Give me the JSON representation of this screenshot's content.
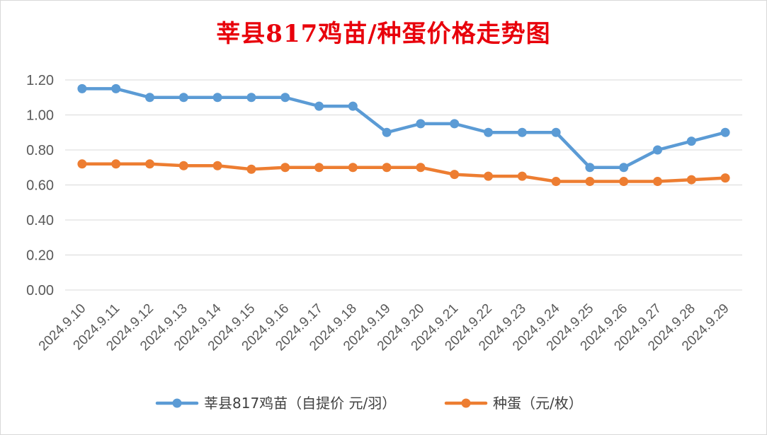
{
  "chart_data": {
    "type": "line",
    "title": "莘县817鸡苗/种蛋价格走势图",
    "xlabel": "",
    "ylabel": "",
    "ylim": [
      0,
      1.2
    ],
    "yticks": [
      "0.00",
      "0.20",
      "0.40",
      "0.60",
      "0.80",
      "1.00",
      "1.20"
    ],
    "grid": true,
    "legend_position": "bottom",
    "categories": [
      "2024.9.10",
      "2024.9.11",
      "2024.9.12",
      "2024.9.13",
      "2024.9.14",
      "2024.9.15",
      "2024.9.16",
      "2024.9.17",
      "2024.9.18",
      "2024.9.19",
      "2024.9.20",
      "2024.9.21",
      "2024.9.22",
      "2024.9.23",
      "2024.9.24",
      "2024.9.25",
      "2024.9.26",
      "2024.9.27",
      "2024.9.28",
      "2024.9.29"
    ],
    "series": [
      {
        "name": "莘县817鸡苗（自提价 元/羽）",
        "color": "#5b9bd5",
        "values": [
          1.15,
          1.15,
          1.1,
          1.1,
          1.1,
          1.1,
          1.1,
          1.05,
          1.05,
          0.9,
          0.95,
          0.95,
          0.9,
          0.9,
          0.9,
          0.7,
          0.7,
          0.8,
          0.85,
          0.9
        ]
      },
      {
        "name": "种蛋（元/枚）",
        "color": "#ed7d31",
        "values": [
          0.72,
          0.72,
          0.72,
          0.71,
          0.71,
          0.69,
          0.7,
          0.7,
          0.7,
          0.7,
          0.7,
          0.66,
          0.65,
          0.65,
          0.62,
          0.62,
          0.62,
          0.62,
          0.63,
          0.64
        ]
      }
    ]
  }
}
